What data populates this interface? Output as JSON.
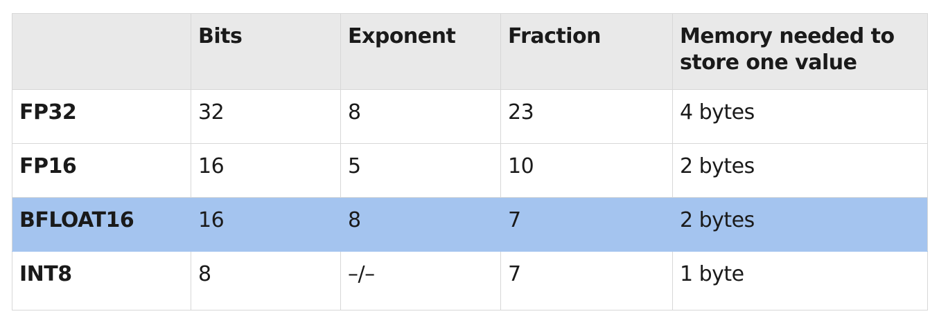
{
  "table": {
    "headers": [
      "",
      "Bits",
      "Exponent",
      "Fraction",
      "Memory needed to store one value"
    ],
    "rows": [
      {
        "label": "FP32",
        "bits": "32",
        "exponent": "8",
        "fraction": "23",
        "memory": "4 bytes"
      },
      {
        "label": "FP16",
        "bits": "16",
        "exponent": "5",
        "fraction": "10",
        "memory": "2 bytes"
      },
      {
        "label": "BFLOAT16",
        "bits": "16",
        "exponent": "8",
        "fraction": "7",
        "memory": "2 bytes"
      },
      {
        "label": "INT8",
        "bits": "8",
        "exponent": "–/–",
        "fraction": "7",
        "memory": "1 byte"
      }
    ],
    "highlight_color": "#a4c4ef",
    "header_bg": "#e9e9e9"
  }
}
